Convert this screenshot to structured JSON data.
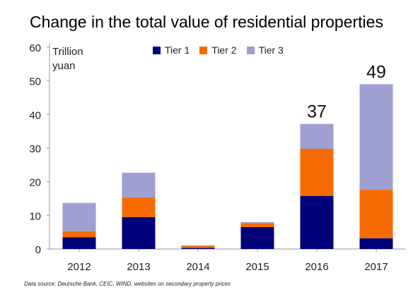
{
  "chart_data": {
    "type": "bar",
    "stacked": true,
    "title": "Change in the total value of residential properties",
    "unit_label": [
      "Trillion",
      "yuan"
    ],
    "categories": [
      "2012",
      "2013",
      "2014",
      "2015",
      "2016",
      "2017"
    ],
    "series": [
      {
        "name": "Tier 1",
        "color": "#00007a",
        "values": [
          3.5,
          9.5,
          0.3,
          6.5,
          15.8,
          3.2
        ]
      },
      {
        "name": "Tier 2",
        "color": "#f56b00",
        "values": [
          1.8,
          5.8,
          0.6,
          1.2,
          14.0,
          14.4
        ]
      },
      {
        "name": "Tier 3",
        "color": "#9f9fd2",
        "values": [
          8.4,
          7.4,
          0.2,
          0.3,
          7.4,
          31.4
        ]
      }
    ],
    "totals_labels": [
      {
        "category": "2016",
        "label": "37"
      },
      {
        "category": "2017",
        "label": "49"
      }
    ],
    "ylim": [
      0,
      60
    ],
    "yticks": [
      0,
      10,
      20,
      30,
      40,
      50,
      60
    ],
    "grid": false,
    "legend_position": "top"
  },
  "source_note": "Data source: Deutsche Bank, CEIC, WIND, websites on secondary property prices"
}
